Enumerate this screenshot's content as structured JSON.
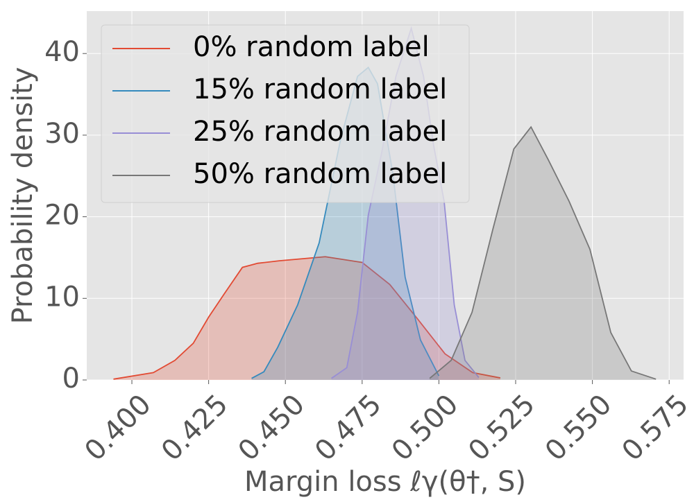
{
  "chart_data": {
    "type": "density",
    "xlabel": "Margin loss ℓγ(θ†, S)",
    "ylabel": "Probability density",
    "xlim": [
      0.3853,
      0.5797
    ],
    "ylim": [
      0,
      45.2
    ],
    "xticks": [
      {
        "value": 0.4,
        "label": "0.400"
      },
      {
        "value": 0.425,
        "label": "0.425"
      },
      {
        "value": 0.45,
        "label": "0.450"
      },
      {
        "value": 0.475,
        "label": "0.475"
      },
      {
        "value": 0.5,
        "label": "0.500"
      },
      {
        "value": 0.525,
        "label": "0.525"
      },
      {
        "value": 0.55,
        "label": "0.550"
      },
      {
        "value": 0.575,
        "label": "0.575"
      }
    ],
    "yticks": [
      0,
      10,
      20,
      30,
      40
    ],
    "grid": true,
    "legend": "upper left",
    "series": [
      {
        "name": "0% random label",
        "color": "#E24A33",
        "x": [
          0.394,
          0.407,
          0.414,
          0.42,
          0.425,
          0.43,
          0.436,
          0.441,
          0.448,
          0.463,
          0.475,
          0.484,
          0.493,
          0.502,
          0.511,
          0.52
        ],
        "values": [
          0.1,
          0.9,
          2.4,
          4.5,
          7.7,
          10.5,
          13.8,
          14.3,
          14.6,
          15.1,
          14.4,
          11.7,
          7.5,
          3.2,
          0.9,
          0.25
        ]
      },
      {
        "name": "15% random label",
        "color": "#348ABD",
        "x": [
          0.439,
          0.443,
          0.4475,
          0.454,
          0.461,
          0.468,
          0.4735,
          0.477,
          0.48,
          0.485,
          0.489,
          0.494,
          0.5
        ],
        "values": [
          0.2,
          1,
          4,
          9.2,
          16.8,
          29.5,
          37.2,
          38.3,
          36.3,
          25.3,
          12.6,
          4.9,
          0.5
        ]
      },
      {
        "name": "25% random label",
        "color": "#988ED5",
        "x": [
          0.465,
          0.47,
          0.4735,
          0.477,
          0.4814,
          0.486,
          0.491,
          0.495,
          0.4983,
          0.5017,
          0.505,
          0.5085,
          0.513
        ],
        "values": [
          0.2,
          1.5,
          8.3,
          20.2,
          27.9,
          37.2,
          43.1,
          37.2,
          28.7,
          21.9,
          9.2,
          2.4,
          0.3
        ]
      },
      {
        "name": "50% random label",
        "color": "#777777",
        "x": [
          0.497,
          0.504,
          0.5108,
          0.5176,
          0.5244,
          0.53,
          0.5356,
          0.5424,
          0.5492,
          0.556,
          0.5627,
          0.5707
        ],
        "values": [
          0.2,
          2.4,
          8.3,
          18.5,
          28.3,
          31,
          27,
          21.9,
          16,
          5.8,
          1.1,
          0.1
        ]
      }
    ]
  }
}
